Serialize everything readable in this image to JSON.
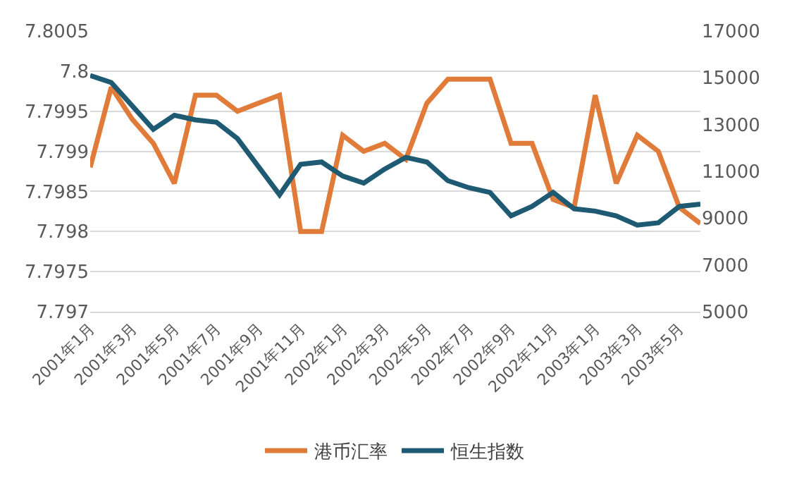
{
  "chart_data": {
    "type": "line",
    "categories": [
      "2001年1月",
      null,
      "2001年3月",
      null,
      "2001年5月",
      null,
      "2001年7月",
      null,
      "2001年9月",
      null,
      "2001年11月",
      null,
      "2002年1月",
      null,
      "2002年3月",
      null,
      "2002年5月",
      null,
      "2002年7月",
      null,
      "2002年9月",
      null,
      "2002年11月",
      null,
      "2003年1月",
      null,
      "2003年3月",
      null,
      "2003年5月",
      null
    ],
    "series": [
      {
        "name": "港币汇率",
        "color": "#e07b39",
        "values": [
          7.7988,
          7.7998,
          7.7994,
          7.7991,
          7.7986,
          7.7997,
          7.7997,
          7.7995,
          7.7996,
          7.7997,
          7.798,
          7.798,
          7.7992,
          7.799,
          7.7991,
          7.7989,
          7.7996,
          7.7999,
          7.7999,
          7.7999,
          7.7991,
          7.7991,
          7.7984,
          7.7983,
          7.7997,
          7.7986,
          7.7992,
          7.799,
          7.7983,
          7.7981
        ]
      },
      {
        "name": "恒生指数",
        "color": "#1f5a73",
        "axis": "y2",
        "values": [
          15100,
          14800,
          13800,
          12800,
          13400,
          13200,
          13100,
          12400,
          11200,
          10000,
          11300,
          11400,
          10800,
          10500,
          11100,
          11600,
          11400,
          10600,
          10300,
          10100,
          9100,
          9500,
          10100,
          9400,
          9300,
          9100,
          8700,
          8800,
          9500,
          9600
        ]
      }
    ],
    "ylim": [
      7.797,
      7.8005
    ],
    "yticks": [
      7.797,
      7.7975,
      7.798,
      7.7985,
      7.799,
      7.7995,
      7.8,
      7.8005
    ],
    "y2lim": [
      5000,
      17000
    ],
    "y2ticks": [
      5000,
      7000,
      9000,
      11000,
      13000,
      15000,
      17000
    ],
    "grid": "y",
    "legend": "bottom",
    "marker": "none",
    "line_style": "solid"
  }
}
